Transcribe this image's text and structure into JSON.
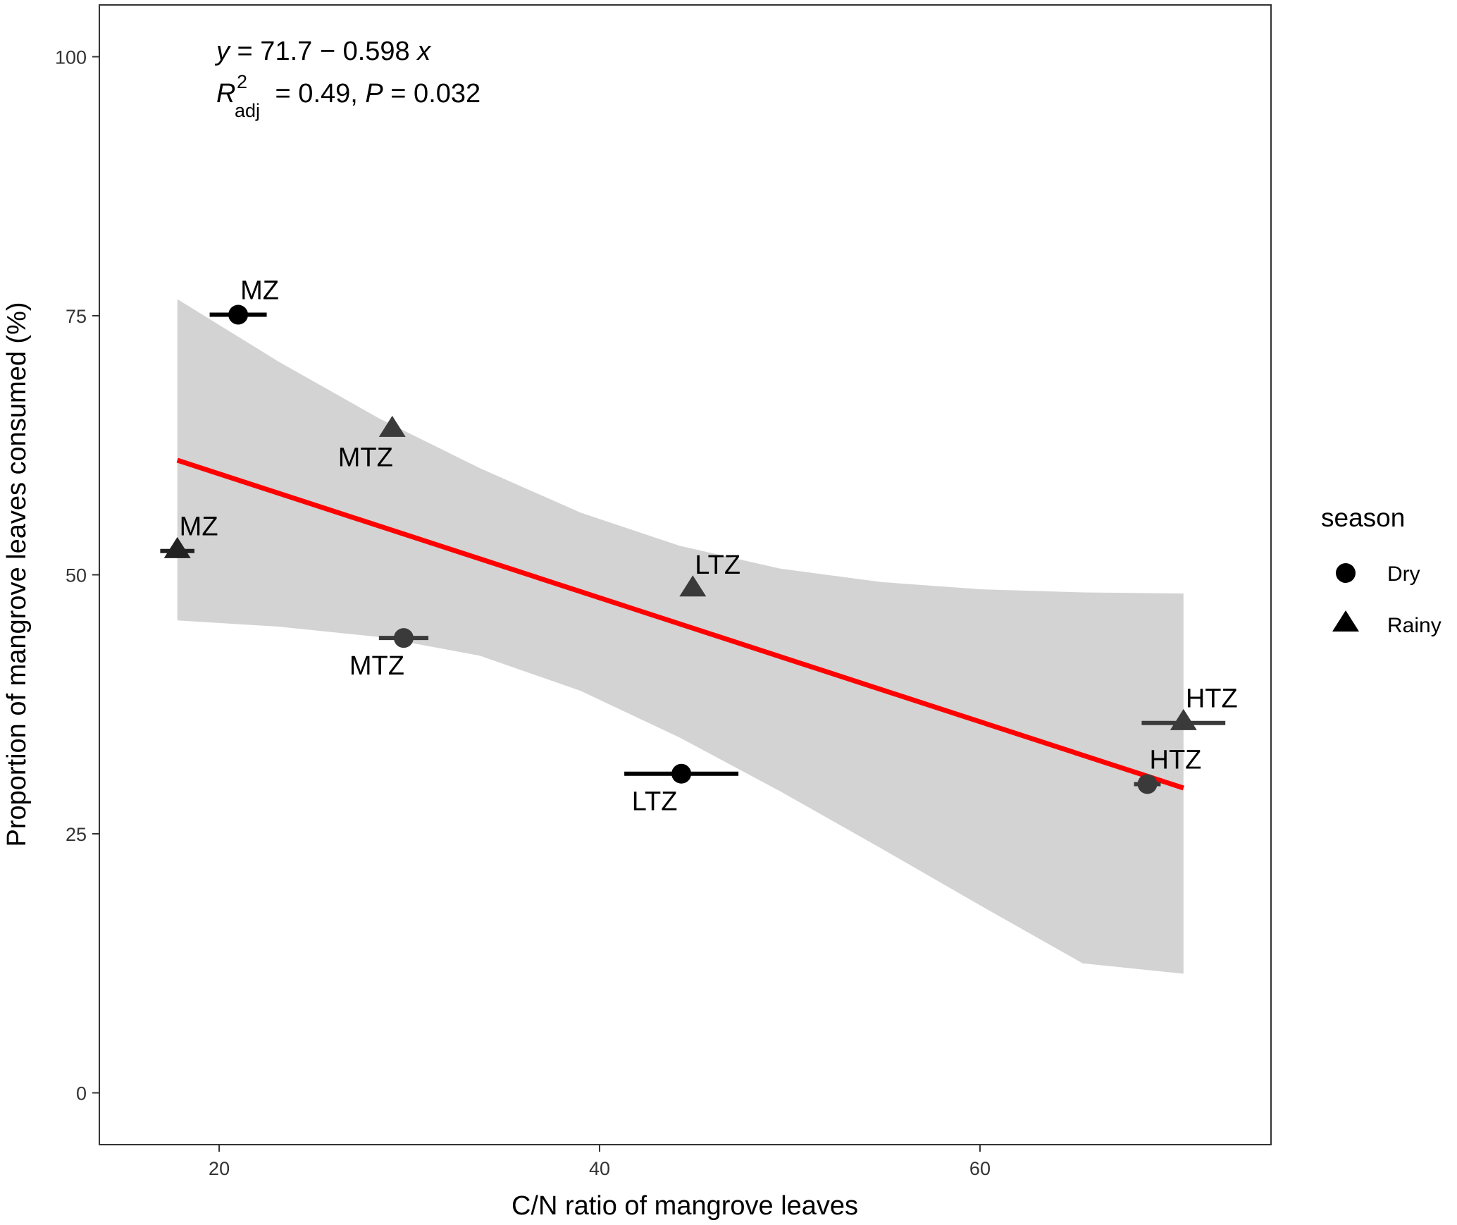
{
  "chart_data": {
    "type": "scatter",
    "title": "",
    "xlabel": "C/N ratio of mangrove leaves",
    "ylabel": "Proportion of mangrove leaves consumed (%)",
    "xlim": [
      13.7,
      75.3
    ],
    "ylim": [
      -5,
      105
    ],
    "x_ticks": [
      20,
      40,
      60
    ],
    "y_ticks": [
      0,
      25,
      50,
      75,
      100
    ],
    "grid": false,
    "equation": {
      "line1_y": "y",
      "line1_rest": " = 71.7 − 0.598 ",
      "line1_x": "x",
      "r_sym": "R",
      "r_sup": "2",
      "r_sub": "adj",
      "r_rest": " = 0.49, ",
      "p_sym": "P",
      "p_rest": " = 0.032"
    },
    "legend": {
      "title": "season",
      "position": "right",
      "entries": [
        {
          "label": "Dry",
          "shape": "circle"
        },
        {
          "label": "Rainy",
          "shape": "triangle"
        }
      ]
    },
    "series": [
      {
        "name": "Dry",
        "shape": "circle",
        "points": [
          {
            "x": 21.0,
            "y": 75.1,
            "xerr": 1.5,
            "label": "MZ",
            "color": "#000000",
            "label_pos": "above-right"
          },
          {
            "x": 29.7,
            "y": 43.9,
            "xerr": 1.3,
            "label": "MTZ",
            "color": "#3a3a3a",
            "label_pos": "below-left"
          },
          {
            "x": 44.3,
            "y": 30.8,
            "xerr": 3.0,
            "label": "LTZ",
            "color": "#000000",
            "label_pos": "below-left"
          },
          {
            "x": 68.8,
            "y": 29.8,
            "xerr": 0.7,
            "label": "HTZ",
            "color": "#3a3a3a",
            "label_pos": "above-right"
          }
        ]
      },
      {
        "name": "Rainy",
        "shape": "triangle",
        "points": [
          {
            "x": 17.8,
            "y": 52.3,
            "xerr": 0.9,
            "label": "MZ",
            "color": "#222222",
            "label_pos": "above-right"
          },
          {
            "x": 29.1,
            "y": 64.0,
            "xerr": 0.0,
            "label": "MTZ",
            "color": "#3a3a3a",
            "label_pos": "below-left"
          },
          {
            "x": 44.9,
            "y": 48.6,
            "xerr": 0.0,
            "label": "LTZ",
            "color": "#3a3a3a",
            "label_pos": "above-right"
          },
          {
            "x": 70.7,
            "y": 35.7,
            "xerr": 2.2,
            "label": "HTZ",
            "color": "#3a3a3a",
            "label_pos": "above-right"
          }
        ]
      }
    ],
    "fit": {
      "intercept": 71.7,
      "slope": -0.598,
      "x_range": [
        17.8,
        70.7
      ],
      "color": "#ff0000",
      "ci_color": "#d3d3d3",
      "ci_band": [
        {
          "x": 17.8,
          "lower": 45.6,
          "upper": 76.6
        },
        {
          "x": 23.1,
          "lower": 45.0,
          "upper": 70.6
        },
        {
          "x": 28.4,
          "lower": 44.0,
          "upper": 65.1
        },
        {
          "x": 33.7,
          "lower": 42.2,
          "upper": 60.3
        },
        {
          "x": 39.0,
          "lower": 38.8,
          "upper": 56.0
        },
        {
          "x": 44.2,
          "lower": 34.3,
          "upper": 52.8
        },
        {
          "x": 49.5,
          "lower": 29.1,
          "upper": 50.6
        },
        {
          "x": 54.8,
          "lower": 23.6,
          "upper": 49.3
        },
        {
          "x": 60.1,
          "lower": 18.0,
          "upper": 48.6
        },
        {
          "x": 65.4,
          "lower": 12.5,
          "upper": 48.3
        },
        {
          "x": 70.7,
          "lower": 11.5,
          "upper": 48.2
        }
      ]
    }
  }
}
